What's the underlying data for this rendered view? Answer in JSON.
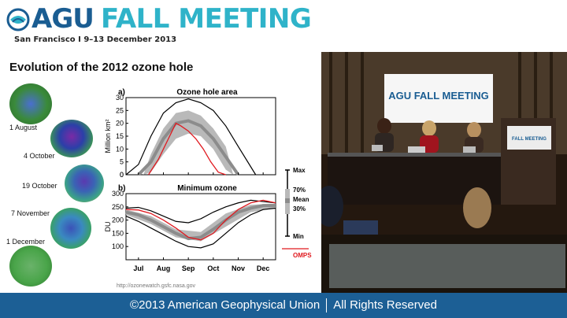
{
  "header": {
    "brand": "AGU",
    "event": "FALL MEETING",
    "subline": "San Francisco  I  9–13 December 2013"
  },
  "slide": {
    "title": "Evolution of the 2012 ozone hole",
    "globes": [
      {
        "label": "1 August",
        "color": "#3a8a3a"
      },
      {
        "label": "4 October",
        "color": "#2b3fa8"
      },
      {
        "label": "19 October",
        "color": "#3a63b5"
      },
      {
        "label": "7 November",
        "color": "#3a8ac0"
      },
      {
        "label": "1 December",
        "color": "#4aa54a"
      }
    ],
    "credit": "http://ozonewatch.gsfc.nasa.gov"
  },
  "chart_data": [
    {
      "type": "line",
      "panel": "a)",
      "title": "Ozone hole area",
      "ylabel": "Million km²",
      "ylim": [
        0,
        30
      ],
      "yticks": [
        0,
        5,
        10,
        15,
        20,
        25,
        30
      ],
      "xcategories": [
        "Jul",
        "Aug",
        "Sep",
        "Oct",
        "Nov",
        "Dec"
      ],
      "series": [
        {
          "name": "Max",
          "x": [
            0,
            0.5,
            1.0,
            1.5,
            2.0,
            2.5,
            3.0,
            3.5,
            4.0,
            4.5,
            5.2
          ],
          "y": [
            0,
            4,
            15,
            24,
            28,
            29.5,
            28,
            25,
            19,
            11,
            0
          ]
        },
        {
          "name": "Mean",
          "x": [
            0.5,
            1.0,
            1.5,
            2.0,
            2.5,
            3.0,
            3.5,
            4.0,
            4.5
          ],
          "y": [
            0,
            5,
            14,
            20,
            21,
            19,
            14,
            7,
            0
          ]
        },
        {
          "name": "OMPS",
          "x": [
            0.9,
            1.3,
            1.7,
            2.0,
            2.2,
            2.5,
            2.8,
            3.1,
            3.4,
            3.7,
            4.0
          ],
          "y": [
            0,
            6,
            14,
            20,
            19,
            17,
            14,
            10,
            5,
            1,
            0
          ]
        }
      ],
      "band_70_30": {
        "x": [
          0.7,
          1.0,
          1.5,
          2.0,
          2.5,
          3.0,
          3.5,
          4.0,
          4.3
        ],
        "y_low": [
          0,
          1,
          8,
          14,
          16,
          15,
          10,
          2,
          0
        ],
        "y_high": [
          0,
          8,
          18,
          24,
          25,
          23,
          18,
          11,
          0
        ]
      }
    },
    {
      "type": "line",
      "panel": "b)",
      "title": "Minimum ozone",
      "ylabel": "DU",
      "ylim": [
        50,
        300
      ],
      "yticks": [
        100,
        150,
        200,
        250,
        300
      ],
      "xcategories": [
        "Jul",
        "Aug",
        "Sep",
        "Oct",
        "Nov",
        "Dec"
      ],
      "series": [
        {
          "name": "Max",
          "x": [
            0,
            0.5,
            1.0,
            1.5,
            2.0,
            2.5,
            3.0,
            3.5,
            4.0,
            4.5,
            5.0,
            5.5,
            6.0
          ],
          "y": [
            245,
            248,
            235,
            215,
            195,
            190,
            205,
            230,
            250,
            265,
            275,
            270,
            265
          ]
        },
        {
          "name": "Mean",
          "x": [
            0,
            0.5,
            1.0,
            1.5,
            2.0,
            2.5,
            3.0,
            3.5,
            4.0,
            4.5,
            5.0,
            5.5,
            6.0
          ],
          "y": [
            230,
            220,
            200,
            175,
            150,
            130,
            135,
            165,
            200,
            230,
            245,
            255,
            255
          ]
        },
        {
          "name": "Min",
          "x": [
            0,
            0.5,
            1.0,
            1.5,
            2.0,
            2.5,
            3.0,
            3.5,
            4.0,
            4.5,
            5.0,
            5.5,
            6.0
          ],
          "y": [
            215,
            195,
            170,
            145,
            120,
            100,
            95,
            110,
            150,
            190,
            220,
            240,
            245
          ]
        },
        {
          "name": "OMPS",
          "x": [
            0,
            0.5,
            1.0,
            1.5,
            2.0,
            2.5,
            3.0,
            3.5,
            4.0,
            4.5,
            5.0,
            5.5,
            6.0
          ],
          "y": [
            240,
            238,
            225,
            200,
            170,
            135,
            125,
            150,
            200,
            240,
            265,
            275,
            265
          ]
        }
      ],
      "band_70_30": {
        "x": [
          0,
          1.0,
          2.0,
          3.0,
          4.0,
          5.0,
          6.0
        ],
        "y_low": [
          220,
          185,
          135,
          120,
          175,
          230,
          245
        ],
        "y_high": [
          240,
          215,
          165,
          155,
          225,
          258,
          262
        ]
      }
    }
  ],
  "legend": {
    "max": "Max",
    "p70": "70%",
    "mean": "Mean",
    "p30": "30%",
    "min": "Min",
    "omps": "OMPS"
  },
  "colors": {
    "brand_blue": "#1a5d92",
    "brand_teal": "#2fb3c9",
    "omps_red": "#e0191f",
    "band_gray": "#b9b9b9",
    "mean_gray": "#8c8c8c"
  },
  "video": {
    "backdrop": "AGU FALL MEETING",
    "podium": "FALL MEETING"
  },
  "footer": {
    "copyright": "©2013 American Geophysical Union",
    "rights": "All Rights Reserved"
  }
}
